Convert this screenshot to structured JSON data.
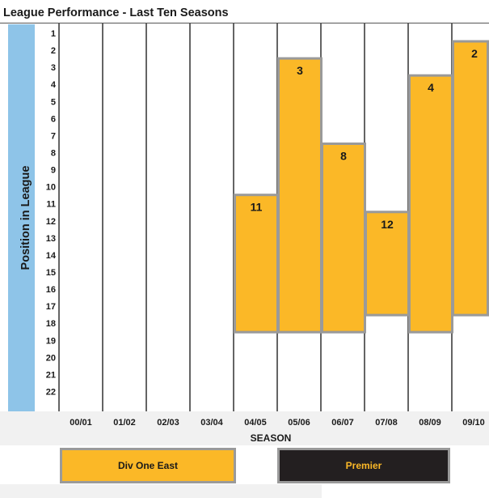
{
  "chart_data": {
    "type": "bar",
    "title": "League Performance - Last Ten Seasons",
    "xlabel": "SEASON",
    "ylabel": "Position in League",
    "y_ticks": [
      "1",
      "2",
      "3",
      "4",
      "5",
      "6",
      "7",
      "8",
      "9",
      "10",
      "11",
      "12",
      "13",
      "14",
      "15",
      "16",
      "17",
      "18",
      "19",
      "20",
      "21",
      "22"
    ],
    "ylim": [
      1,
      22
    ],
    "y_inverted": true,
    "categories": [
      "00/01",
      "01/02",
      "02/03",
      "03/04",
      "04/05",
      "05/06",
      "06/07",
      "07/08",
      "08/09",
      "09/10"
    ],
    "bars": [
      {
        "season": "04/05",
        "position": 11,
        "label": "11",
        "league": "Div One East",
        "league_bottom": 18
      },
      {
        "season": "05/06",
        "position": 3,
        "label": "3",
        "league": "Div One East",
        "league_bottom": 18
      },
      {
        "season": "06/07",
        "position": 8,
        "label": "8",
        "league": "Div One East",
        "league_bottom": 18
      },
      {
        "season": "07/08",
        "position": 12,
        "label": "12",
        "league": "Div One East",
        "league_bottom": 17
      },
      {
        "season": "08/09",
        "position": 4,
        "label": "4",
        "league": "Div One East",
        "league_bottom": 18
      },
      {
        "season": "09/10",
        "position": 2,
        "label": "2",
        "league": "Div One East",
        "league_bottom": 17
      }
    ],
    "legend": [
      {
        "label": "Div One East",
        "color": "#fbb827"
      },
      {
        "label": "Premier",
        "color": "#231f20"
      }
    ],
    "colors": {
      "bar_fill": "#fbb827",
      "bar_border": "#9a9a9a",
      "axis_band": "#8ec4e8"
    }
  }
}
